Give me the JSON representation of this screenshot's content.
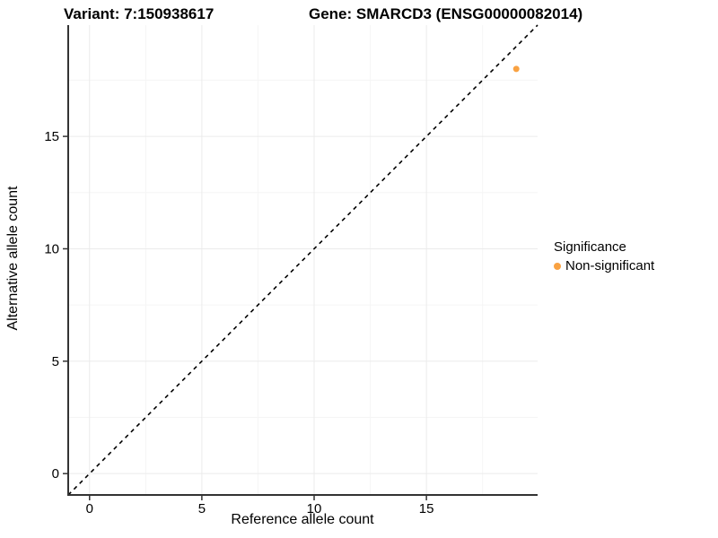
{
  "header": {
    "title_left": "Variant: 7:150938617",
    "title_right": "Gene: SMARCD3 (ENSG00000082014)"
  },
  "chart_data": {
    "type": "scatter",
    "title_left": "Variant: 7:150938617",
    "title_right": "Gene: SMARCD3 (ENSG00000082014)",
    "xlabel": "Reference allele count",
    "ylabel": "Alternative allele count",
    "xlim": [
      -0.95,
      19.95
    ],
    "ylim": [
      -0.95,
      19.95
    ],
    "x_ticks": [
      0,
      5,
      10,
      15
    ],
    "y_ticks": [
      0,
      5,
      10,
      15
    ],
    "x_minor_ticks": [
      2.5,
      7.5,
      12.5,
      17.5
    ],
    "y_minor_ticks": [
      2.5,
      7.5,
      12.5,
      17.5
    ],
    "grid": true,
    "identity_line": {
      "style": "dashed",
      "color": "#000000",
      "from": [
        -0.95,
        -0.95
      ],
      "to": [
        19.95,
        19.95
      ]
    },
    "series": [
      {
        "name": "Non-significant",
        "color": "#F9A242",
        "points": [
          {
            "x": 19,
            "y": 18
          }
        ]
      }
    ],
    "legend": {
      "title": "Significance",
      "position": "right",
      "items": [
        {
          "label": "Non-significant",
          "color": "#F9A242"
        }
      ]
    },
    "colors": {
      "axis_line": "#333333",
      "grid_major": "#ebebeb",
      "grid_minor": "#f5f5f5",
      "tick_mark": "#333333",
      "tick_label": "#000000",
      "background": "#ffffff"
    }
  }
}
